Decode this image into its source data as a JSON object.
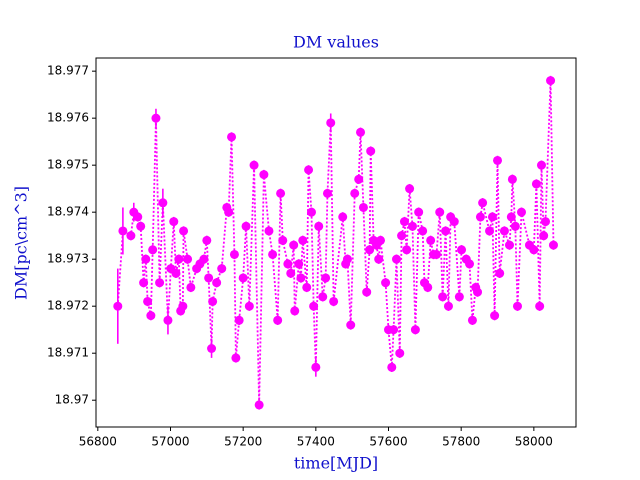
{
  "chart_data": {
    "type": "errorbar",
    "title": "DM values",
    "x_label": "time[MJD]",
    "y_label": "DM[pc\\cm^3]",
    "color": "#ff00ff",
    "line_style": "dotted",
    "x": [
      56855,
      56869,
      56891,
      56899,
      56910,
      56918,
      56926,
      56932,
      56937,
      56946,
      56951,
      56960,
      56970,
      56979,
      56993,
      57001,
      57009,
      57015,
      57023,
      57028,
      57034,
      57036,
      57047,
      57056,
      57072,
      57081,
      57092,
      57100,
      57105,
      57113,
      57116,
      57127,
      57141,
      57155,
      57160,
      57168,
      57176,
      57180,
      57189,
      57200,
      57208,
      57217,
      57230,
      57244,
      57257,
      57271,
      57281,
      57295,
      57303,
      57309,
      57323,
      57331,
      57339,
      57342,
      57353,
      57359,
      57364,
      57375,
      57380,
      57388,
      57394,
      57400,
      57408,
      57419,
      57427,
      57432,
      57441,
      57449,
      57474,
      57482,
      57487,
      57496,
      57507,
      57518,
      57523,
      57531,
      57540,
      57548,
      57551,
      57559,
      57567,
      57573,
      57578,
      57592,
      57600,
      57609,
      57614,
      57622,
      57631,
      57636,
      57644,
      57650,
      57658,
      57666,
      57674,
      57683,
      57694,
      57699,
      57708,
      57716,
      57724,
      57732,
      57741,
      57749,
      57757,
      57765,
      57771,
      57781,
      57795,
      57801,
      57814,
      57823,
      57831,
      57840,
      57845,
      57853,
      57859,
      57878,
      57886,
      57892,
      57900,
      57906,
      57919,
      57933,
      57938,
      57941,
      57949,
      57955,
      57966,
      57988,
      58000,
      58007,
      58016,
      58021,
      58027,
      58032,
      58046,
      58054
    ],
    "values": [
      18.972,
      18.9736,
      18.9735,
      18.974,
      18.9739,
      18.9737,
      18.9725,
      18.973,
      18.9721,
      18.9718,
      18.9732,
      18.976,
      18.9725,
      18.9742,
      18.9717,
      18.9728,
      18.9738,
      18.9727,
      18.973,
      18.9719,
      18.972,
      18.9736,
      18.973,
      18.9724,
      18.9728,
      18.9729,
      18.973,
      18.9734,
      18.9726,
      18.9711,
      18.9721,
      18.9725,
      18.9728,
      18.9741,
      18.974,
      18.9756,
      18.9731,
      18.9709,
      18.9717,
      18.9726,
      18.9737,
      18.972,
      18.975,
      18.9699,
      18.9748,
      18.9736,
      18.9731,
      18.9717,
      18.9744,
      18.9734,
      18.9729,
      18.9727,
      18.9733,
      18.9719,
      18.9729,
      18.9726,
      18.9734,
      18.9724,
      18.9749,
      18.974,
      18.972,
      18.9707,
      18.9737,
      18.9722,
      18.9726,
      18.9744,
      18.9759,
      18.9721,
      18.9739,
      18.9729,
      18.973,
      18.9716,
      18.9744,
      18.9747,
      18.9757,
      18.9741,
      18.9723,
      18.9732,
      18.9753,
      18.9734,
      18.9733,
      18.973,
      18.9734,
      18.9725,
      18.9715,
      18.9707,
      18.9715,
      18.973,
      18.971,
      18.9735,
      18.9738,
      18.9732,
      18.9745,
      18.9737,
      18.9715,
      18.974,
      18.9736,
      18.9725,
      18.9724,
      18.9734,
      18.9731,
      18.9731,
      18.974,
      18.9722,
      18.9736,
      18.972,
      18.9739,
      18.9738,
      18.9722,
      18.9732,
      18.973,
      18.9729,
      18.9717,
      18.9724,
      18.9723,
      18.9739,
      18.9742,
      18.9736,
      18.9739,
      18.9718,
      18.9751,
      18.9727,
      18.9736,
      18.9733,
      18.9739,
      18.9747,
      18.9737,
      18.972,
      18.974,
      18.9733,
      18.9732,
      18.9746,
      18.972,
      18.975,
      18.9735,
      18.9738,
      18.9768,
      18.9733
    ],
    "errors": [
      0.0008,
      0.0005,
      0.0001,
      0.0002,
      0.0001,
      0.0001,
      0.0001,
      0.0001,
      0.0001,
      0.0001,
      0.0001,
      0.0002,
      0.0001,
      0.0003,
      0.0003,
      0.0001,
      0.0001,
      0.0001,
      0.0001,
      0.0001,
      0.0001,
      0.0001,
      0.0001,
      0.0001,
      0.0001,
      0.0001,
      0.0001,
      0.0001,
      0.0001,
      0.0002,
      0.0001,
      0.0001,
      0.0001,
      0.0001,
      0.0001,
      0.0001,
      0.0001,
      0.0001,
      0.0001,
      0.0001,
      0.0001,
      0.0001,
      0.0001,
      0.0001,
      0.0001,
      0.0001,
      0.0001,
      0.0001,
      0.0001,
      0.0001,
      0.0001,
      0.0001,
      0.0001,
      0.0001,
      0.0001,
      0.0001,
      0.0001,
      0.0001,
      0.0001,
      0.0001,
      0.0001,
      0.0002,
      0.0001,
      0.0001,
      0.0001,
      0.0001,
      0.0002,
      0.0001,
      0.0001,
      0.0001,
      0.0001,
      0.0001,
      0.0001,
      0.0001,
      0.0001,
      0.0001,
      0.0001,
      0.0001,
      0.0001,
      0.0001,
      0.0001,
      0.0001,
      0.0001,
      0.0001,
      0.0001,
      0.0001,
      0.0001,
      0.0001,
      0.0001,
      0.0001,
      0.0001,
      0.0001,
      0.0001,
      0.0001,
      0.0001,
      0.0001,
      0.0001,
      0.0001,
      0.0001,
      0.0001,
      0.0001,
      0.0001,
      0.0001,
      0.0001,
      0.0001,
      0.0001,
      0.0001,
      0.0001,
      0.0001,
      0.0001,
      0.0001,
      0.0001,
      0.0001,
      0.0001,
      0.0001,
      0.0001,
      0.0001,
      0.0001,
      0.0001,
      0.0001,
      0.0001,
      0.0001,
      0.0001,
      0.0001,
      0.0001,
      0.0001,
      0.0001,
      0.0001,
      0.0001,
      0.0001,
      0.0001,
      0.0001,
      0.0001,
      0.0001,
      0.0001,
      0.0001,
      0.0001,
      0.0001
    ],
    "xlim": [
      56795,
      58116
    ],
    "ylim": [
      18.96943,
      18.97728
    ],
    "xticks": [
      56800,
      57000,
      57200,
      57400,
      57600,
      57800,
      58000
    ],
    "yticks": [
      18.97,
      18.971,
      18.972,
      18.973,
      18.974,
      18.975,
      18.976,
      18.977
    ]
  }
}
